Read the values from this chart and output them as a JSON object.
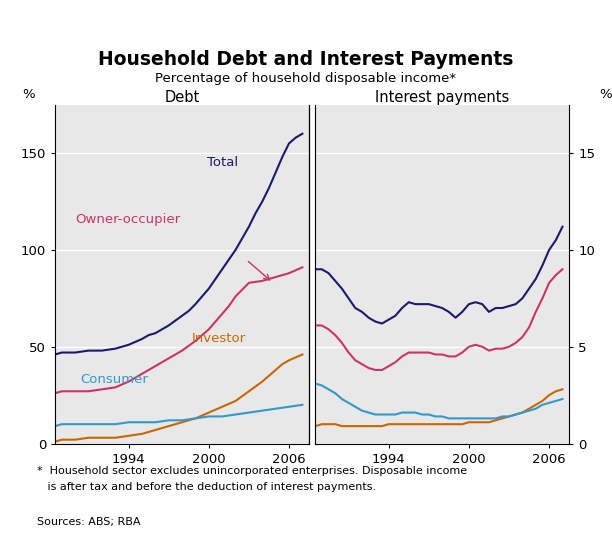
{
  "title": "Household Debt and Interest Payments",
  "subtitle": "Percentage of household disposable income*",
  "left_panel_title": "Debt",
  "right_panel_title": "Interest payments",
  "footnote1": "*  Household sector excludes unincorporated enterprises. Disposable income",
  "footnote2": "   is after tax and before the deduction of interest payments.",
  "sources": "Sources: ABS; RBA",
  "background_color": "#e8e8e8",
  "colors": {
    "total": "#1a1a6e",
    "owner_occupier": "#cc3366",
    "investor": "#cc6600",
    "consumer": "#3399cc"
  },
  "debt": {
    "years": [
      1988.5,
      1989,
      1989.5,
      1990,
      1990.5,
      1991,
      1991.5,
      1992,
      1992.5,
      1993,
      1993.5,
      1994,
      1994.5,
      1995,
      1995.5,
      1996,
      1996.5,
      1997,
      1997.5,
      1998,
      1998.5,
      1999,
      1999.5,
      2000,
      2000.5,
      2001,
      2001.5,
      2002,
      2002.5,
      2003,
      2003.5,
      2004,
      2004.5,
      2005,
      2005.5,
      2006,
      2006.5,
      2007
    ],
    "total": [
      46,
      47,
      47,
      47,
      47.5,
      48,
      48,
      48,
      48.5,
      49,
      50,
      51,
      52.5,
      54,
      56,
      57,
      59,
      61,
      63.5,
      66,
      68.5,
      72,
      76,
      80,
      85,
      90,
      95,
      100,
      106,
      112,
      119,
      125,
      132,
      140,
      148,
      155,
      158,
      160
    ],
    "owner_occupier": [
      26,
      27,
      27,
      27,
      27,
      27,
      27.5,
      28,
      28.5,
      29,
      30.5,
      32,
      34,
      36,
      38,
      40,
      42,
      44,
      46,
      48,
      50.5,
      53,
      56,
      59,
      63,
      67,
      71,
      76,
      79.5,
      83,
      83.5,
      84,
      85,
      86,
      87,
      88,
      89.5,
      91
    ],
    "investor": [
      1,
      2,
      2,
      2,
      2.5,
      3,
      3,
      3,
      3,
      3,
      3.5,
      4,
      4.5,
      5,
      6,
      7,
      8,
      9,
      10,
      11,
      12,
      13,
      14.5,
      16,
      17.5,
      19,
      20.5,
      22,
      24.5,
      27,
      29.5,
      32,
      35,
      38,
      41,
      43,
      44.5,
      46
    ],
    "consumer": [
      9,
      10,
      10,
      10,
      10,
      10,
      10,
      10,
      10,
      10,
      10.5,
      11,
      11,
      11,
      11,
      11,
      11.5,
      12,
      12,
      12,
      12.5,
      13,
      13.5,
      14,
      14,
      14,
      14.5,
      15,
      15.5,
      16,
      16.5,
      17,
      17.5,
      18,
      18.5,
      19,
      19.5,
      20
    ]
  },
  "interest": {
    "years": [
      1988.5,
      1989,
      1989.5,
      1990,
      1990.5,
      1991,
      1991.5,
      1992,
      1992.5,
      1993,
      1993.5,
      1994,
      1994.5,
      1995,
      1995.5,
      1996,
      1996.5,
      1997,
      1997.5,
      1998,
      1998.5,
      1999,
      1999.5,
      2000,
      2000.5,
      2001,
      2001.5,
      2002,
      2002.5,
      2003,
      2003.5,
      2004,
      2004.5,
      2005,
      2005.5,
      2006,
      2006.5,
      2007
    ],
    "total": [
      9.0,
      9.0,
      8.8,
      8.4,
      8.0,
      7.5,
      7.0,
      6.8,
      6.5,
      6.3,
      6.2,
      6.4,
      6.6,
      7.0,
      7.3,
      7.2,
      7.2,
      7.2,
      7.1,
      7.0,
      6.8,
      6.5,
      6.8,
      7.2,
      7.3,
      7.2,
      6.8,
      7.0,
      7.0,
      7.1,
      7.2,
      7.5,
      8.0,
      8.5,
      9.2,
      10.0,
      10.5,
      11.2
    ],
    "owner_occupier": [
      6.1,
      6.1,
      5.9,
      5.6,
      5.2,
      4.7,
      4.3,
      4.1,
      3.9,
      3.8,
      3.8,
      4.0,
      4.2,
      4.5,
      4.7,
      4.7,
      4.7,
      4.7,
      4.6,
      4.6,
      4.5,
      4.5,
      4.7,
      5.0,
      5.1,
      5.0,
      4.8,
      4.9,
      4.9,
      5.0,
      5.2,
      5.5,
      6.0,
      6.8,
      7.5,
      8.3,
      8.7,
      9.0
    ],
    "investor": [
      0.9,
      1.0,
      1.0,
      1.0,
      0.9,
      0.9,
      0.9,
      0.9,
      0.9,
      0.9,
      0.9,
      1.0,
      1.0,
      1.0,
      1.0,
      1.0,
      1.0,
      1.0,
      1.0,
      1.0,
      1.0,
      1.0,
      1.0,
      1.1,
      1.1,
      1.1,
      1.1,
      1.2,
      1.3,
      1.4,
      1.5,
      1.6,
      1.8,
      2.0,
      2.2,
      2.5,
      2.7,
      2.8
    ],
    "consumer": [
      3.1,
      3.0,
      2.8,
      2.6,
      2.3,
      2.1,
      1.9,
      1.7,
      1.6,
      1.5,
      1.5,
      1.5,
      1.5,
      1.6,
      1.6,
      1.6,
      1.5,
      1.5,
      1.4,
      1.4,
      1.3,
      1.3,
      1.3,
      1.3,
      1.3,
      1.3,
      1.3,
      1.3,
      1.4,
      1.4,
      1.5,
      1.6,
      1.7,
      1.8,
      2.0,
      2.1,
      2.2,
      2.3
    ]
  },
  "debt_ylim": [
    0,
    175
  ],
  "debt_yticks": [
    0,
    50,
    100,
    150
  ],
  "interest_ylim": [
    0,
    17.5
  ],
  "interest_yticks": [
    0,
    5,
    10,
    15
  ],
  "xlim": [
    1988.5,
    2007.5
  ],
  "xticks": [
    1994,
    2000,
    2006
  ]
}
